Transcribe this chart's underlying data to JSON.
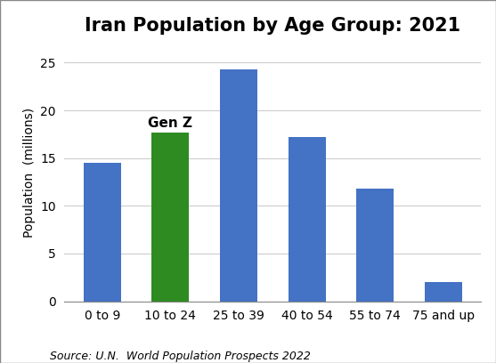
{
  "title": "Iran Population by Age Group: 2021",
  "categories": [
    "0 to 9",
    "10 to 24",
    "25 to 39",
    "40 to 54",
    "55 to 74",
    "75 and up"
  ],
  "values": [
    14.5,
    17.7,
    24.3,
    17.2,
    11.8,
    2.0
  ],
  "bar_colors": [
    "#4472C4",
    "#2E8B22",
    "#4472C4",
    "#4472C4",
    "#4472C4",
    "#4472C4"
  ],
  "ylabel": "Population  (millions)",
  "ylim": [
    0,
    27
  ],
  "yticks": [
    0,
    5,
    10,
    15,
    20,
    25
  ],
  "annotation_text": "Gen Z",
  "annotation_bar_index": 1,
  "source_text": "Source: U.N.  World Population Prospects 2022",
  "title_fontsize": 15,
  "label_fontsize": 10,
  "tick_fontsize": 10,
  "source_fontsize": 9,
  "annotation_fontsize": 11,
  "background_color": "#FFFFFF",
  "grid_color": "#CCCCCC",
  "bar_width": 0.55
}
